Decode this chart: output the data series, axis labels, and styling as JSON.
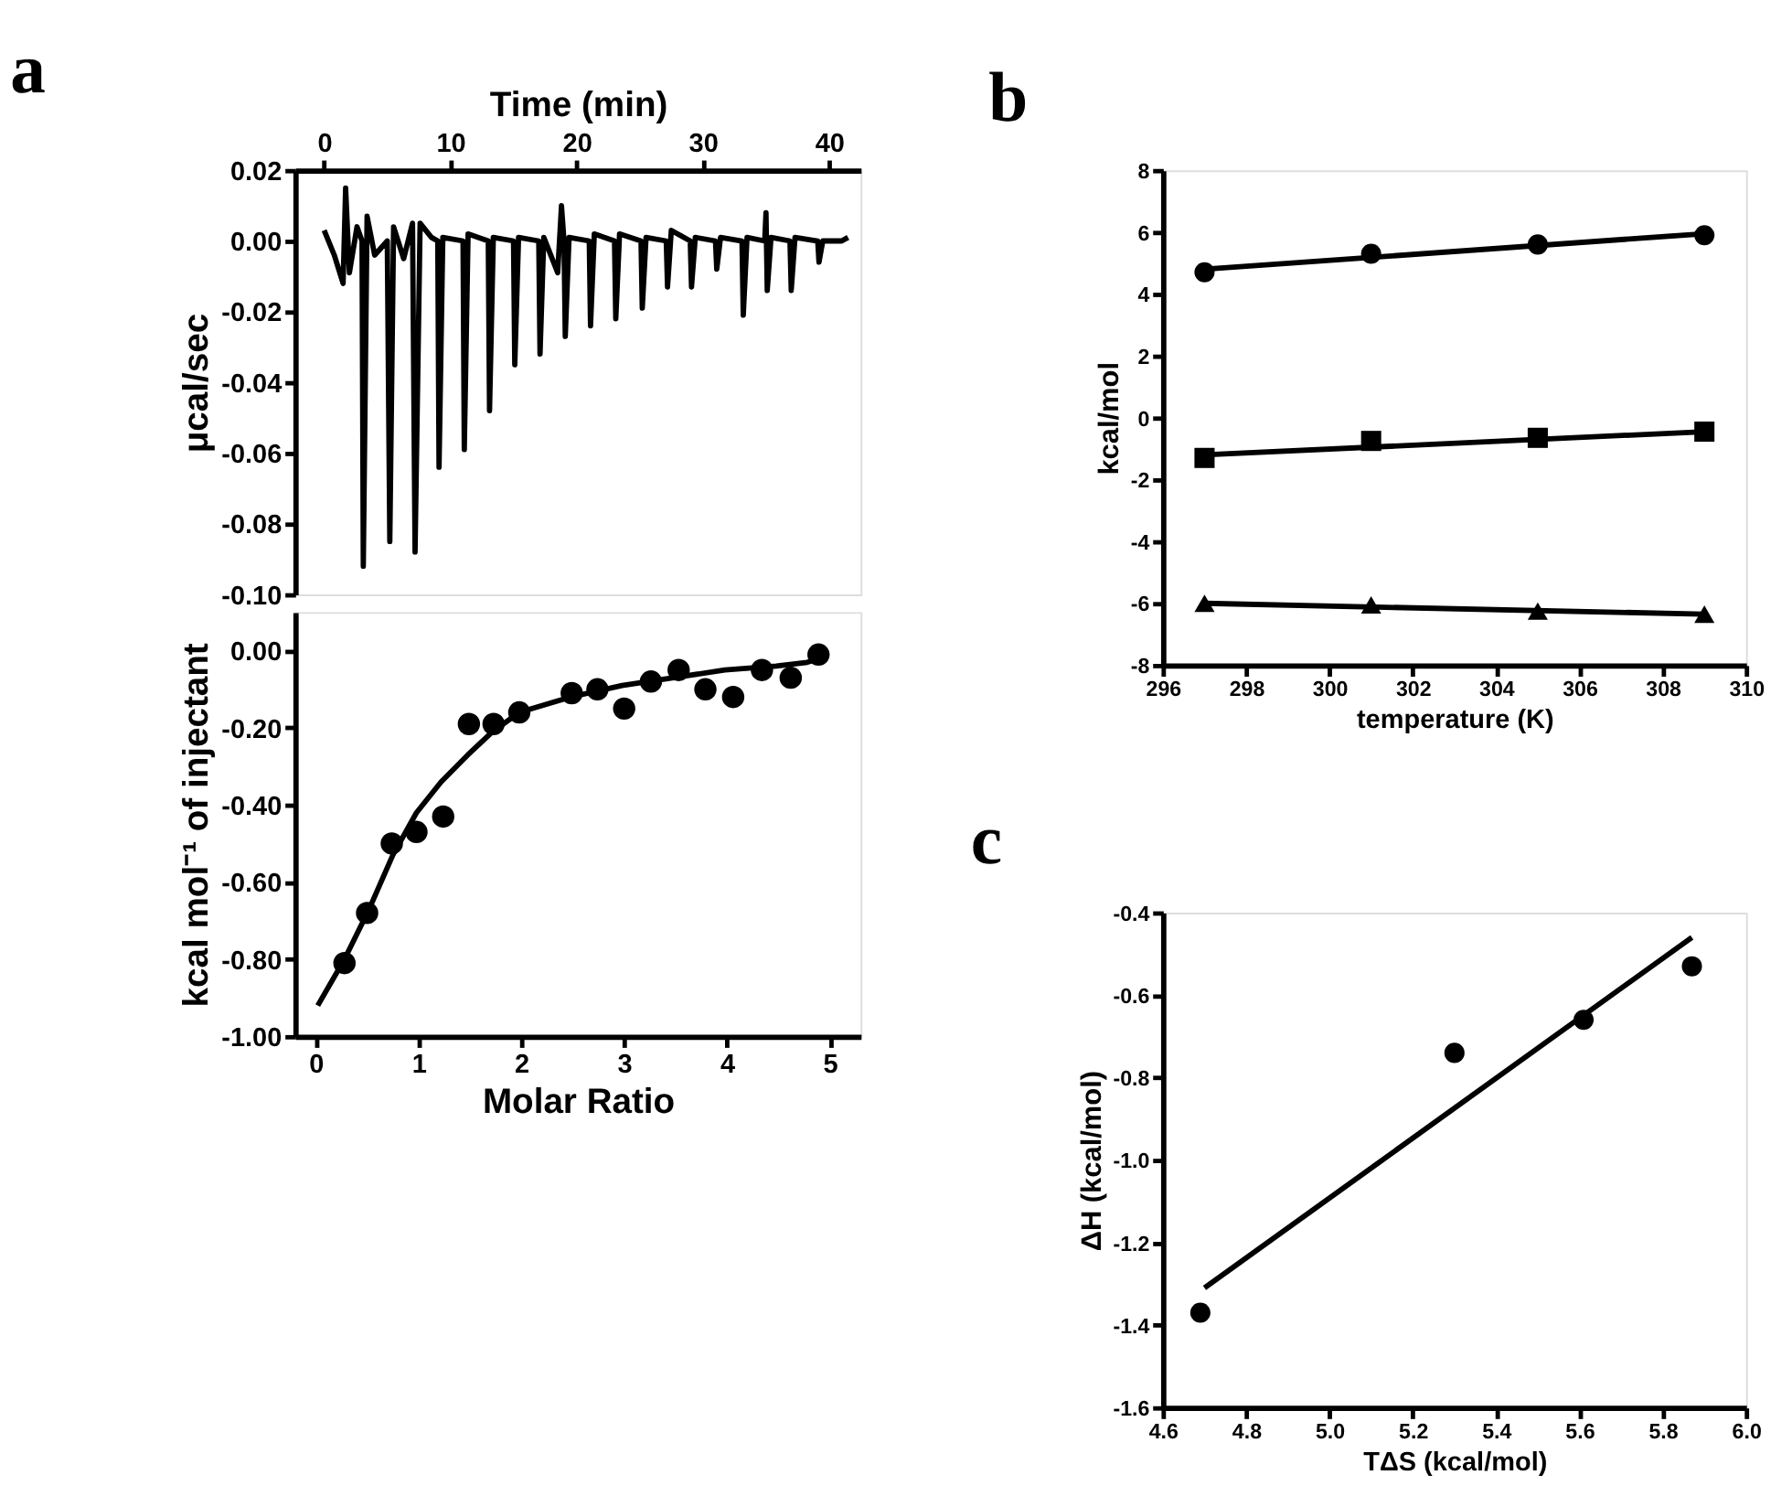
{
  "chart_data": [
    {
      "type": "line",
      "title": "a",
      "xlabel": "Time (min)",
      "ylabel": "μcal/sec",
      "xlim": [
        -2.3,
        42.5
      ],
      "xticks": [
        0,
        10,
        20,
        30,
        40
      ],
      "ylim": [
        -0.1,
        0.02
      ],
      "yticks": [
        {
          "value": 0.02,
          "label": "0.02"
        },
        {
          "value": 0.0,
          "label": "0.00"
        },
        {
          "value": -0.02,
          "label": "-0.02"
        },
        {
          "value": -0.04,
          "label": "-0.04"
        },
        {
          "value": -0.06,
          "label": "-0.06"
        },
        {
          "value": -0.08,
          "label": "-0.08"
        },
        {
          "value": -0.1,
          "label": "-0.10"
        }
      ],
      "series": [
        {
          "color": "#000000",
          "x": [
            0,
            0.8,
            1.5,
            1.7,
            2.0,
            2.6,
            3.0,
            3.1,
            3.4,
            4.0,
            5.0,
            5.2,
            5.5,
            6.3,
            7.0,
            7.2,
            7.6,
            8.5,
            9.0,
            9.1,
            9.4,
            11.0,
            11.1,
            11.4,
            13.0,
            13.1,
            13.4,
            15.0,
            15.1,
            15.4,
            17.0,
            17.1,
            17.4,
            18.5,
            18.8,
            19.0,
            19.1,
            19.4,
            21.0,
            21.1,
            21.4,
            23.0,
            23.1,
            23.4,
            25.1,
            25.2,
            25.5,
            27.1,
            27.2,
            27.5,
            29.0,
            29.1,
            29.4,
            31.0,
            31.1,
            31.4,
            33.1,
            33.2,
            33.5,
            34.9,
            35.0,
            35.1,
            35.4,
            36.9,
            37.0,
            37.3,
            39.1,
            39.2,
            39.5,
            41.0,
            41.5
          ],
          "values": [
            0.003,
            -0.004,
            -0.012,
            0.015,
            -0.009,
            0.004,
            0.0,
            -0.092,
            0.007,
            -0.004,
            0.0,
            -0.085,
            0.004,
            -0.005,
            0.005,
            -0.088,
            0.005,
            0.001,
            0.0,
            -0.064,
            0.001,
            0.0,
            -0.059,
            0.002,
            0.0,
            -0.048,
            0.001,
            0.0,
            -0.035,
            0.001,
            0.0,
            -0.032,
            0.001,
            -0.009,
            0.01,
            0.0,
            -0.027,
            0.001,
            0.0,
            -0.024,
            0.002,
            0.0,
            -0.022,
            0.002,
            0.0,
            -0.019,
            0.001,
            0.0,
            -0.013,
            0.003,
            0.0,
            -0.013,
            0.001,
            0.0,
            -0.008,
            0.001,
            0.0,
            -0.021,
            0.001,
            0.0,
            0.008,
            -0.014,
            0.001,
            0.0,
            -0.014,
            0.001,
            0.0,
            -0.006,
            0.0,
            0.0,
            0.001
          ]
        }
      ]
    },
    {
      "type": "scatter",
      "xlabel": "Molar Ratio",
      "ylabel": "kcal mol⁻¹ of injectant",
      "xlim": [
        -0.2,
        5.3
      ],
      "xticks": [
        0,
        1,
        2,
        3,
        4,
        5
      ],
      "ylim": [
        -1.0,
        0.1
      ],
      "yticks": [
        {
          "value": 0.0,
          "label": "0.00"
        },
        {
          "value": -0.2,
          "label": "-0.20"
        },
        {
          "value": -0.4,
          "label": "-0.40"
        },
        {
          "value": -0.6,
          "label": "-0.60"
        },
        {
          "value": -0.8,
          "label": "-0.80"
        },
        {
          "value": -1.0,
          "label": "-1.00"
        }
      ],
      "series": [
        {
          "type": "scatter",
          "marker": "circle",
          "color": "#000000",
          "x": [
            0.28,
            0.5,
            0.74,
            0.98,
            1.24,
            1.49,
            1.73,
            1.98,
            2.49,
            2.74,
            3.0,
            3.26,
            3.53,
            3.79,
            4.06,
            4.34,
            4.62,
            4.89
          ],
          "values": [
            -0.81,
            -0.68,
            -0.5,
            -0.47,
            -0.43,
            -0.19,
            -0.19,
            -0.16,
            -0.11,
            -0.1,
            -0.15,
            -0.08,
            -0.05,
            -0.1,
            -0.12,
            -0.05,
            -0.07,
            -0.01
          ]
        },
        {
          "type": "line",
          "color": "#000000",
          "x": [
            0.02,
            0.28,
            0.52,
            0.75,
            0.98,
            1.22,
            1.48,
            1.72,
            1.98,
            2.48,
            2.98,
            3.48,
            3.98,
            4.48,
            4.78,
            4.9
          ],
          "values": [
            -0.92,
            -0.8,
            -0.67,
            -0.53,
            -0.42,
            -0.34,
            -0.27,
            -0.21,
            -0.16,
            -0.12,
            -0.09,
            -0.07,
            -0.05,
            -0.04,
            -0.03,
            -0.02
          ]
        }
      ]
    },
    {
      "type": "scatter",
      "title": "b",
      "xlabel": "temperature (K)",
      "ylabel": "kcal/mol",
      "xlim": [
        296,
        310
      ],
      "xticks": [
        296,
        298,
        300,
        302,
        304,
        306,
        308,
        310
      ],
      "ylim": [
        -8,
        8
      ],
      "yticks": [
        -8,
        -6,
        -4,
        -2,
        0,
        2,
        4,
        6,
        8
      ],
      "series": [
        {
          "type": "scatter",
          "marker": "circle",
          "color": "#000000",
          "x": [
            297,
            301,
            305,
            309
          ],
          "values": [
            4.7,
            5.3,
            5.6,
            5.9
          ]
        },
        {
          "type": "line",
          "color": "#000000",
          "x": [
            297,
            309
          ],
          "values": [
            4.8,
            5.95
          ]
        },
        {
          "type": "scatter",
          "marker": "square",
          "color": "#000000",
          "x": [
            297,
            301,
            305,
            309
          ],
          "values": [
            -1.3,
            -0.75,
            -0.65,
            -0.45
          ]
        },
        {
          "type": "line",
          "color": "#000000",
          "x": [
            297,
            309
          ],
          "values": [
            -1.2,
            -0.45
          ]
        },
        {
          "type": "scatter",
          "marker": "triangle",
          "color": "#000000",
          "x": [
            297,
            301,
            305,
            309
          ],
          "values": [
            -6.0,
            -6.05,
            -6.25,
            -6.35
          ]
        },
        {
          "type": "line",
          "color": "#000000",
          "x": [
            297,
            309
          ],
          "values": [
            -6.0,
            -6.35
          ]
        }
      ]
    },
    {
      "type": "scatter",
      "title": "c",
      "xlabel": "TΔS (kcal/mol)",
      "ylabel": "ΔH (kcal/mol)",
      "xlim": [
        4.6,
        6.0
      ],
      "xticks": [
        4.6,
        4.8,
        {
          "value": 5.0,
          "label": "5.0"
        },
        5.2,
        5.4,
        5.6,
        5.8,
        {
          "value": 6.0,
          "label": "6.0"
        }
      ],
      "ylim": [
        -1.6,
        -0.4
      ],
      "yticks": [
        -1.6,
        -1.4,
        -1.2,
        {
          "value": -1.0,
          "label": "-1.0"
        },
        -0.8,
        -0.6,
        -0.4
      ],
      "series": [
        {
          "type": "scatter",
          "marker": "circle",
          "color": "#000000",
          "x": [
            4.69,
            5.3,
            5.61,
            5.87
          ],
          "values": [
            -1.37,
            -0.74,
            -0.66,
            -0.53
          ]
        },
        {
          "type": "line",
          "color": "#000000",
          "x": [
            4.7,
            5.87
          ],
          "values": [
            -1.31,
            -0.46
          ]
        }
      ]
    }
  ]
}
